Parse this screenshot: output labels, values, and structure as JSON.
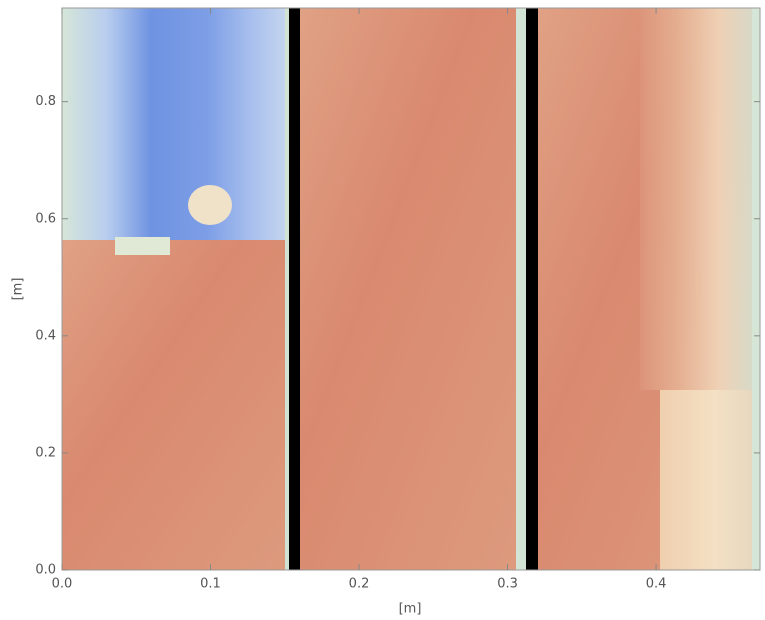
{
  "chart_data": {
    "type": "heatmap",
    "xlabel": "[m]",
    "ylabel": "[m]",
    "xlim": [
      0,
      0.47
    ],
    "ylim": [
      0,
      0.96
    ],
    "xticks": [
      {
        "value": 0,
        "label": "0.0"
      },
      0.1,
      0.2,
      0.3,
      0.4
    ],
    "yticks": [
      {
        "value": 0,
        "label": "0.0"
      },
      0.2,
      0.4,
      0.6,
      0.8
    ]
  }
}
